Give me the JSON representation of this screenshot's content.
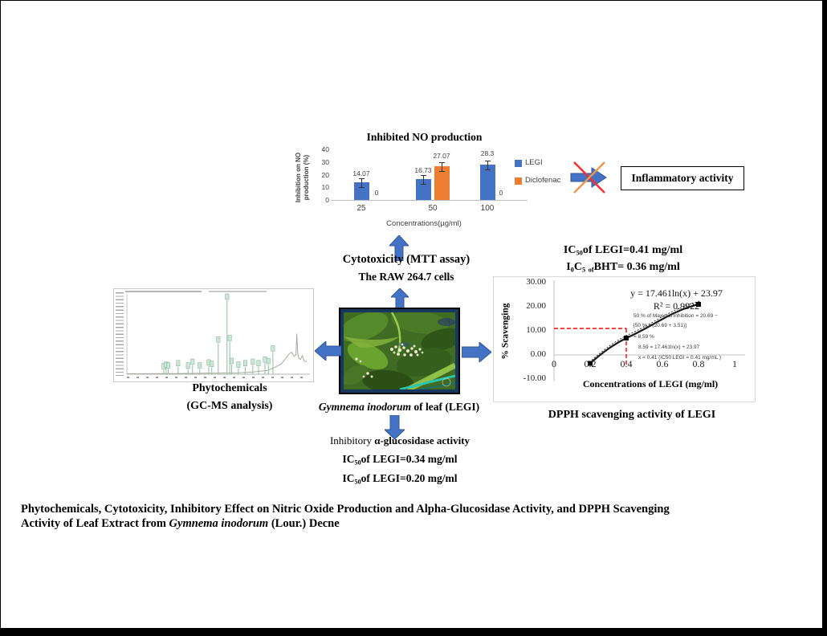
{
  "colors": {
    "accent_blue": "#4472C4",
    "accent_orange": "#ED7D31",
    "cross_red": "#FF2A2A",
    "cross_orange": "#ED9748",
    "guide_red": "#FF0000",
    "frame_navy": "#17375E",
    "peak_green": "#8FBF9F"
  },
  "chart_data": [
    {
      "type": "bar",
      "title": "Inhibited NO production",
      "categories": [
        "25",
        "50",
        "100"
      ],
      "series": [
        {
          "name": "LEGI",
          "color": "#4472C4",
          "values": [
            14.07,
            16.73,
            28.3
          ]
        },
        {
          "name": "Diclofenac",
          "color": "#ED7D31",
          "values": [
            0,
            27.07,
            0
          ]
        }
      ],
      "data_labels": [
        [
          "14.07",
          "16.73",
          "28.3"
        ],
        [
          "0",
          "27.07",
          "0"
        ]
      ],
      "xlabel": "Concentrations(µg/ml)",
      "ylabel_lines": [
        "Inhibition on NO",
        "production (%)"
      ],
      "ylim": [
        0,
        40
      ],
      "y_tick_labels": [
        "40",
        "30",
        "20",
        "10",
        "0"
      ],
      "legend_position": "right",
      "error_bars": true
    },
    {
      "type": "scatter",
      "series": [
        {
          "name": "LEGI",
          "x": [
            0.2,
            0.4,
            0.8
          ],
          "y": [
            -3.5,
            7.0,
            21.0
          ],
          "marker": "square",
          "color": "#000000"
        }
      ],
      "trendline": {
        "equation": "y = 17.461ln(x) + 23.97",
        "r_squared": "R² = 0.9922"
      },
      "annotation_lines": [
        "50 % of Maximal inhibition = 20.69 −",
        "[50 % x (20.69 + 3.51)]",
        "= 8.59 %",
        "8.59 = 17.461ln(x) + 23.97",
        "x = 0.41   (IC50 LEGI =  0.41 mg/mL )"
      ],
      "guide_lines": {
        "x": 0.4,
        "y": 11,
        "color": "#FF0000",
        "style": "dashed"
      },
      "xlabel": "Concentrations of LEGI (mg/ml)",
      "ylabel": "% Scavenging",
      "xlim": [
        0,
        1
      ],
      "ylim": [
        -10,
        30
      ],
      "x_tick_labels": [
        "0",
        "0.2",
        "0.4",
        "0.6",
        "0.8",
        "1"
      ],
      "y_tick_labels": [
        "30.00",
        "20.00",
        "10.00",
        "0.00",
        "-10.00"
      ]
    },
    {
      "type": "line",
      "title": "GC-MS total ion chromatogram",
      "note": "many small labeled peaks; labels not legible at this resolution",
      "peak_color": "#8FBF9F",
      "peaks_normalized": [
        {
          "x": 0.205,
          "h": 0.06
        },
        {
          "x": 0.218,
          "h": 0.08
        },
        {
          "x": 0.23,
          "h": 0.07
        },
        {
          "x": 0.285,
          "h": 0.1
        },
        {
          "x": 0.34,
          "h": 0.07
        },
        {
          "x": 0.365,
          "h": 0.12
        },
        {
          "x": 0.405,
          "h": 0.07
        },
        {
          "x": 0.455,
          "h": 0.11
        },
        {
          "x": 0.472,
          "h": 0.09
        },
        {
          "x": 0.508,
          "h": 0.42
        },
        {
          "x": 0.557,
          "h": 1.0
        },
        {
          "x": 0.572,
          "h": 0.44
        },
        {
          "x": 0.583,
          "h": 0.13
        },
        {
          "x": 0.62,
          "h": 0.08
        },
        {
          "x": 0.658,
          "h": 0.1
        },
        {
          "x": 0.7,
          "h": 0.12
        },
        {
          "x": 0.732,
          "h": 0.1
        },
        {
          "x": 0.768,
          "h": 0.15
        },
        {
          "x": 0.787,
          "h": 0.13
        },
        {
          "x": 0.812,
          "h": 0.3
        }
      ],
      "baseline_profile": [
        [
          0.0,
          0.005
        ],
        [
          0.3,
          0.01
        ],
        [
          0.5,
          0.015
        ],
        [
          0.62,
          0.02
        ],
        [
          0.7,
          0.03
        ],
        [
          0.78,
          0.05
        ],
        [
          0.82,
          0.09
        ],
        [
          0.86,
          0.14
        ],
        [
          0.9,
          0.27
        ],
        [
          0.915,
          0.3
        ],
        [
          0.93,
          0.24
        ],
        [
          0.94,
          0.26
        ],
        [
          0.945,
          0.55
        ],
        [
          0.95,
          0.28
        ],
        [
          0.955,
          0.22
        ],
        [
          0.965,
          0.2
        ],
        [
          0.975,
          0.25
        ],
        [
          0.985,
          0.18
        ],
        [
          1.0,
          0.17
        ]
      ]
    }
  ],
  "texts": {
    "inflammatory_box": "Inflammatory activity",
    "cytotoxicity_line1": "Cytotoxicity (MTT assay)",
    "cytotoxicity_line2": "The RAW 264.7 cells",
    "plant_caption_italic": "Gymnema inodorum",
    "plant_caption_rest": " of leaf (LEGI)",
    "phytochem_line1": "Phytochemicals",
    "phytochem_line2": "(GC-MS analysis)",
    "glucosidase_title_pre": "Inhibitory ",
    "glucosidase_title_bold": "α-glucosidase activity",
    "gluc_ic1": {
      "pre": "IC",
      "sub": "50",
      "post": "of LEGI=0.34 mg/ml"
    },
    "gluc_ic2": {
      "pre": "IC",
      "sub": "50",
      "post": "of LEGI=0.20 mg/ml"
    },
    "dpph_ic_legi": {
      "pre": "IC",
      "sub": "50",
      "post": "of LEGI=0.41 mg/ml"
    },
    "dpph_ic_bht": {
      "p1": "I",
      "s1": "0",
      "p2": "C",
      "s2": "5",
      "s3": "of",
      "p3": "BHT= 0.36 mg/ml"
    },
    "dpph_caption": "DPPH scavenging activity of LEGI",
    "footer_line1": "Phytochemicals, Cytotoxicity, Inhibitory Effect on Nitric Oxide Production and Alpha-Glucosidase Activity, and DPPH Scavenging",
    "footer_line2_pre": "Activity of Leaf Extract from ",
    "footer_line2_italic": "Gymnema inodorum",
    "footer_line2_post": " (Lour.) Decne"
  }
}
